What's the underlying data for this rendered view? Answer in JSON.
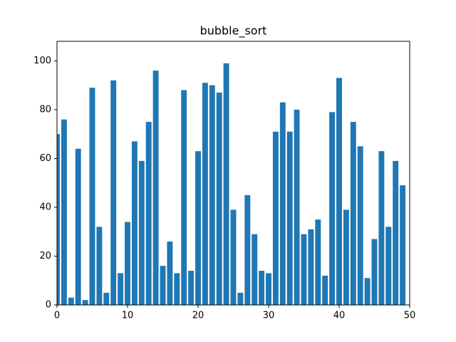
{
  "chart_data": {
    "type": "bar",
    "title": "bubble_sort",
    "x": [
      0,
      1,
      2,
      3,
      4,
      5,
      6,
      7,
      8,
      9,
      10,
      11,
      12,
      13,
      14,
      15,
      16,
      17,
      18,
      19,
      20,
      21,
      22,
      23,
      24,
      25,
      26,
      27,
      28,
      29,
      30,
      31,
      32,
      33,
      34,
      35,
      36,
      37,
      38,
      39,
      40,
      41,
      42,
      43,
      44,
      45,
      46,
      47,
      48,
      49
    ],
    "values": [
      70,
      76,
      3,
      64,
      2,
      89,
      32,
      5,
      92,
      13,
      34,
      67,
      59,
      75,
      96,
      16,
      26,
      13,
      88,
      14,
      63,
      91,
      90,
      87,
      99,
      39,
      5,
      45,
      29,
      14,
      13,
      71,
      83,
      71,
      80,
      29,
      31,
      35,
      12,
      79,
      93,
      39,
      75,
      65,
      11,
      27,
      63,
      32,
      59,
      49
    ],
    "color": "#1f77b4",
    "xlim": [
      0,
      50
    ],
    "xticks": [
      0,
      10,
      20,
      30,
      40,
      50
    ],
    "ylim": [
      0,
      108
    ],
    "yticks": [
      0,
      20,
      40,
      60,
      80,
      100
    ],
    "grid": false
  }
}
